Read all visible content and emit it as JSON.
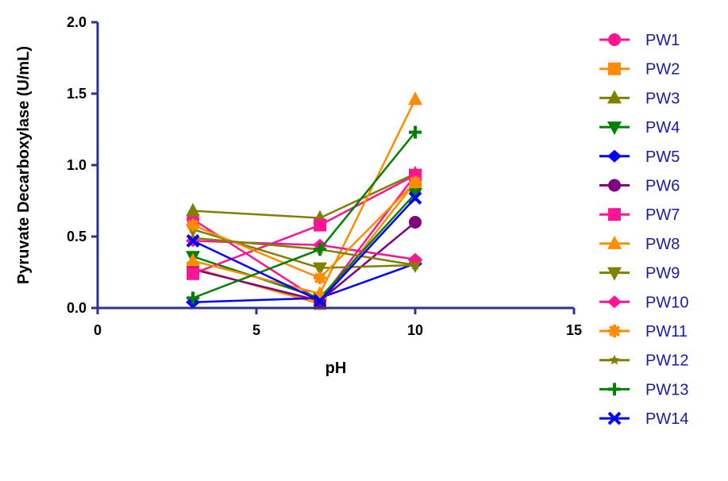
{
  "chart_data": {
    "type": "line",
    "xlabel": "pH",
    "ylabel": "Pyruvate Decarboxylase (U/mL)",
    "xlim": [
      0,
      15
    ],
    "ylim": [
      0,
      2.0
    ],
    "xticks": [
      "0",
      "5",
      "10",
      "15"
    ],
    "yticks": [
      "0.0",
      "0.5",
      "1.0",
      "1.5",
      "2.0"
    ],
    "x": [
      3,
      7,
      10
    ],
    "legend": "right",
    "grid": false,
    "series": [
      {
        "name": "PW1",
        "color": "#ff1493",
        "marker": "circle",
        "values": [
          0.62,
          0.05,
          0.93
        ]
      },
      {
        "name": "PW2",
        "color": "#ff8c00",
        "marker": "square",
        "values": [
          0.28,
          0.03,
          0.88
        ]
      },
      {
        "name": "PW3",
        "color": "#808000",
        "marker": "triangle-up",
        "values": [
          0.68,
          0.63,
          0.94
        ]
      },
      {
        "name": "PW4",
        "color": "#008000",
        "marker": "triangle-down",
        "values": [
          0.36,
          0.07,
          0.8
        ]
      },
      {
        "name": "PW5",
        "color": "#0000ff",
        "marker": "diamond",
        "values": [
          0.04,
          0.07,
          0.31
        ]
      },
      {
        "name": "PW6",
        "color": "#800080",
        "marker": "circle",
        "values": [
          0.27,
          0.05,
          0.6
        ]
      },
      {
        "name": "PW7",
        "color": "#ff1493",
        "marker": "square",
        "values": [
          0.24,
          0.58,
          0.93
        ]
      },
      {
        "name": "PW8",
        "color": "#ff8c00",
        "marker": "triangle-up",
        "values": [
          0.33,
          0.1,
          1.46
        ]
      },
      {
        "name": "PW9",
        "color": "#808000",
        "marker": "triangle-down",
        "values": [
          0.55,
          0.28,
          0.3
        ]
      },
      {
        "name": "PW10",
        "color": "#ff1493",
        "marker": "diamond",
        "values": [
          0.47,
          0.44,
          0.34
        ]
      },
      {
        "name": "PW11",
        "color": "#ff8c00",
        "marker": "asterisk",
        "values": [
          0.58,
          0.21,
          0.88
        ]
      },
      {
        "name": "PW12",
        "color": "#808000",
        "marker": "star",
        "values": [
          0.49,
          0.41,
          0.3
        ]
      },
      {
        "name": "PW13",
        "color": "#008000",
        "marker": "plus",
        "values": [
          0.07,
          0.41,
          1.23
        ]
      },
      {
        "name": "PW14",
        "color": "#0000ff",
        "marker": "x",
        "values": [
          0.47,
          0.05,
          0.77
        ]
      }
    ]
  }
}
